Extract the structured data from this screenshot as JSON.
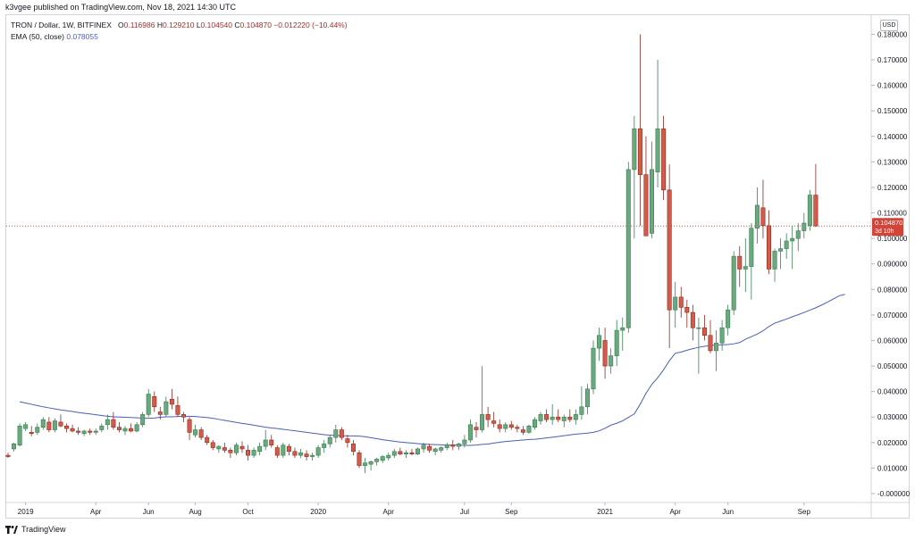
{
  "header": {
    "published": "k3vgee published on TradingView.com, Nov 18, 2021 14:30 UTC"
  },
  "legend": {
    "symbol": "TRON / Dollar, 1W, BITFINEX",
    "open_label": "O",
    "open": "0.116986",
    "high_label": "H",
    "high": "0.129210",
    "low_label": "L",
    "low": "0.104540",
    "close_label": "C",
    "close": "0.104870",
    "change": "−0.012220 (−10.44%)",
    "ema_label": "EMA (50, close)",
    "ema_value": "0.078055"
  },
  "currency_badge": "USD",
  "price_label": {
    "value": "0.104870",
    "countdown": "3d 10h"
  },
  "footer": {
    "brand": "TradingView"
  },
  "colors": {
    "up": "#26a269",
    "up_fill": "#6aa87e",
    "down": "#c0392b",
    "down_fill": "#d35b4a",
    "ema": "#4a5fb3",
    "price_line": "#c0392b"
  },
  "chart_data": {
    "type": "candlestick",
    "y_ticks": [
      "0.180000",
      "0.170000",
      "0.160000",
      "0.150000",
      "0.140000",
      "0.130000",
      "0.120000",
      "0.110000",
      "0.100000",
      "0.090000",
      "0.080000",
      "0.070000",
      "0.060000",
      "0.050000",
      "0.040000",
      "0.030000",
      "0.020000",
      "0.010000",
      "-0.000000"
    ],
    "x_ticks": [
      "2019",
      "Apr",
      "Jun",
      "Aug",
      "Oct",
      "2020",
      "Apr",
      "Jul",
      "Sep",
      "2021",
      "Apr",
      "Jun",
      "Sep"
    ],
    "ylim": [
      -0.0035,
      0.1875
    ],
    "ohlc": [
      [
        0.015,
        0.016,
        0.014,
        0.0145
      ],
      [
        0.0175,
        0.02,
        0.0165,
        0.0195
      ],
      [
        0.019,
        0.0275,
        0.0185,
        0.0265
      ],
      [
        0.0255,
        0.028,
        0.0245,
        0.027
      ],
      [
        0.024,
        0.0265,
        0.0225,
        0.0235
      ],
      [
        0.024,
        0.0275,
        0.023,
        0.026
      ],
      [
        0.026,
        0.03,
        0.025,
        0.029
      ],
      [
        0.028,
        0.03,
        0.024,
        0.025
      ],
      [
        0.025,
        0.0295,
        0.024,
        0.0285
      ],
      [
        0.028,
        0.031,
        0.026,
        0.0265
      ],
      [
        0.0265,
        0.0275,
        0.024,
        0.0255
      ],
      [
        0.0255,
        0.027,
        0.024,
        0.0245
      ],
      [
        0.0245,
        0.026,
        0.023,
        0.024
      ],
      [
        0.0235,
        0.025,
        0.0225,
        0.0245
      ],
      [
        0.0245,
        0.0255,
        0.023,
        0.024
      ],
      [
        0.024,
        0.0255,
        0.023,
        0.0245
      ],
      [
        0.025,
        0.0275,
        0.024,
        0.0265
      ],
      [
        0.027,
        0.031,
        0.025,
        0.029
      ],
      [
        0.029,
        0.032,
        0.025,
        0.026
      ],
      [
        0.026,
        0.028,
        0.024,
        0.025
      ],
      [
        0.0245,
        0.0265,
        0.023,
        0.0255
      ],
      [
        0.0255,
        0.0275,
        0.024,
        0.0245
      ],
      [
        0.0245,
        0.028,
        0.024,
        0.027
      ],
      [
        0.027,
        0.032,
        0.026,
        0.031
      ],
      [
        0.031,
        0.041,
        0.03,
        0.039
      ],
      [
        0.038,
        0.04,
        0.032,
        0.034
      ],
      [
        0.032,
        0.034,
        0.029,
        0.031
      ],
      [
        0.031,
        0.038,
        0.03,
        0.036
      ],
      [
        0.037,
        0.041,
        0.033,
        0.035
      ],
      [
        0.0345,
        0.038,
        0.03,
        0.031
      ],
      [
        0.031,
        0.032,
        0.028,
        0.03
      ],
      [
        0.029,
        0.03,
        0.021,
        0.024
      ],
      [
        0.023,
        0.027,
        0.022,
        0.025
      ],
      [
        0.025,
        0.026,
        0.021,
        0.022
      ],
      [
        0.022,
        0.023,
        0.019,
        0.02
      ],
      [
        0.02,
        0.021,
        0.017,
        0.018
      ],
      [
        0.0175,
        0.019,
        0.016,
        0.0185
      ],
      [
        0.018,
        0.02,
        0.016,
        0.017
      ],
      [
        0.017,
        0.018,
        0.014,
        0.016
      ],
      [
        0.016,
        0.02,
        0.015,
        0.019
      ],
      [
        0.0185,
        0.0205,
        0.016,
        0.0175
      ],
      [
        0.017,
        0.019,
        0.013,
        0.015
      ],
      [
        0.015,
        0.018,
        0.014,
        0.017
      ],
      [
        0.0165,
        0.02,
        0.015,
        0.0185
      ],
      [
        0.0185,
        0.025,
        0.017,
        0.021
      ],
      [
        0.021,
        0.023,
        0.018,
        0.019
      ],
      [
        0.018,
        0.019,
        0.014,
        0.015
      ],
      [
        0.015,
        0.02,
        0.014,
        0.019
      ],
      [
        0.0185,
        0.0195,
        0.015,
        0.0165
      ],
      [
        0.0165,
        0.018,
        0.014,
        0.015
      ],
      [
        0.015,
        0.0175,
        0.014,
        0.016
      ],
      [
        0.0155,
        0.017,
        0.013,
        0.0145
      ],
      [
        0.0145,
        0.016,
        0.013,
        0.015
      ],
      [
        0.015,
        0.019,
        0.014,
        0.018
      ],
      [
        0.018,
        0.021,
        0.016,
        0.0195
      ],
      [
        0.0195,
        0.023,
        0.018,
        0.022
      ],
      [
        0.022,
        0.027,
        0.02,
        0.025
      ],
      [
        0.025,
        0.026,
        0.021,
        0.022
      ],
      [
        0.0215,
        0.023,
        0.018,
        0.02
      ],
      [
        0.0195,
        0.021,
        0.015,
        0.0165
      ],
      [
        0.016,
        0.017,
        0.01,
        0.011
      ],
      [
        0.011,
        0.014,
        0.008,
        0.012
      ],
      [
        0.0115,
        0.013,
        0.009,
        0.0125
      ],
      [
        0.0125,
        0.014,
        0.011,
        0.0135
      ],
      [
        0.013,
        0.015,
        0.012,
        0.0145
      ],
      [
        0.014,
        0.016,
        0.013,
        0.015
      ],
      [
        0.015,
        0.0175,
        0.014,
        0.0165
      ],
      [
        0.0165,
        0.018,
        0.015,
        0.0155
      ],
      [
        0.0155,
        0.017,
        0.014,
        0.016
      ],
      [
        0.016,
        0.0175,
        0.015,
        0.0155
      ],
      [
        0.0155,
        0.018,
        0.015,
        0.0175
      ],
      [
        0.0175,
        0.02,
        0.016,
        0.019
      ],
      [
        0.0185,
        0.0195,
        0.016,
        0.017
      ],
      [
        0.0165,
        0.018,
        0.015,
        0.0175
      ],
      [
        0.017,
        0.0185,
        0.016,
        0.018
      ],
      [
        0.018,
        0.02,
        0.017,
        0.019
      ],
      [
        0.019,
        0.021,
        0.017,
        0.0185
      ],
      [
        0.0185,
        0.02,
        0.017,
        0.0195
      ],
      [
        0.0195,
        0.023,
        0.018,
        0.021
      ],
      [
        0.021,
        0.029,
        0.02,
        0.027
      ],
      [
        0.026,
        0.028,
        0.022,
        0.025
      ],
      [
        0.025,
        0.05,
        0.024,
        0.031
      ],
      [
        0.031,
        0.034,
        0.026,
        0.029
      ],
      [
        0.0285,
        0.032,
        0.026,
        0.0275
      ],
      [
        0.027,
        0.029,
        0.024,
        0.0255
      ],
      [
        0.0255,
        0.028,
        0.024,
        0.027
      ],
      [
        0.027,
        0.0285,
        0.025,
        0.026
      ],
      [
        0.026,
        0.027,
        0.024,
        0.0255
      ],
      [
        0.025,
        0.0265,
        0.023,
        0.024
      ],
      [
        0.024,
        0.027,
        0.0235,
        0.0265
      ],
      [
        0.026,
        0.03,
        0.025,
        0.029
      ],
      [
        0.0285,
        0.032,
        0.027,
        0.031
      ],
      [
        0.031,
        0.033,
        0.028,
        0.029
      ],
      [
        0.029,
        0.035,
        0.027,
        0.03
      ],
      [
        0.03,
        0.033,
        0.028,
        0.029
      ],
      [
        0.0285,
        0.031,
        0.026,
        0.03
      ],
      [
        0.03,
        0.033,
        0.028,
        0.029
      ],
      [
        0.029,
        0.033,
        0.027,
        0.031
      ],
      [
        0.031,
        0.042,
        0.029,
        0.034
      ],
      [
        0.034,
        0.043,
        0.031,
        0.041
      ],
      [
        0.041,
        0.06,
        0.039,
        0.057
      ],
      [
        0.057,
        0.065,
        0.052,
        0.062
      ],
      [
        0.06,
        0.065,
        0.045,
        0.05
      ],
      [
        0.05,
        0.057,
        0.047,
        0.054
      ],
      [
        0.054,
        0.068,
        0.05,
        0.064
      ],
      [
        0.064,
        0.069,
        0.056,
        0.065
      ],
      [
        0.065,
        0.13,
        0.063,
        0.127
      ],
      [
        0.127,
        0.148,
        0.1,
        0.143
      ],
      [
        0.143,
        0.18,
        0.105,
        0.125
      ],
      [
        0.125,
        0.14,
        0.102,
        0.101
      ],
      [
        0.102,
        0.138,
        0.1,
        0.127
      ],
      [
        0.126,
        0.17,
        0.12,
        0.143
      ],
      [
        0.143,
        0.148,
        0.115,
        0.119
      ],
      [
        0.119,
        0.129,
        0.057,
        0.072
      ],
      [
        0.072,
        0.083,
        0.065,
        0.077
      ],
      [
        0.077,
        0.081,
        0.069,
        0.073
      ],
      [
        0.073,
        0.076,
        0.065,
        0.071
      ],
      [
        0.071,
        0.074,
        0.06,
        0.065
      ],
      [
        0.065,
        0.069,
        0.047,
        0.065
      ],
      [
        0.065,
        0.07,
        0.06,
        0.062
      ],
      [
        0.062,
        0.068,
        0.055,
        0.056
      ],
      [
        0.056,
        0.064,
        0.048,
        0.059
      ],
      [
        0.059,
        0.068,
        0.056,
        0.065
      ],
      [
        0.065,
        0.074,
        0.062,
        0.072
      ],
      [
        0.072,
        0.095,
        0.07,
        0.093
      ],
      [
        0.093,
        0.097,
        0.081,
        0.088
      ],
      [
        0.088,
        0.1,
        0.079,
        0.089
      ],
      [
        0.089,
        0.106,
        0.076,
        0.104
      ],
      [
        0.104,
        0.12,
        0.098,
        0.113
      ],
      [
        0.112,
        0.123,
        0.1,
        0.105
      ],
      [
        0.105,
        0.111,
        0.086,
        0.088
      ],
      [
        0.088,
        0.096,
        0.083,
        0.095
      ],
      [
        0.095,
        0.1,
        0.088,
        0.096
      ],
      [
        0.096,
        0.102,
        0.092,
        0.099
      ],
      [
        0.099,
        0.105,
        0.088,
        0.1
      ],
      [
        0.1,
        0.106,
        0.095,
        0.103
      ],
      [
        0.103,
        0.11,
        0.1,
        0.106
      ],
      [
        0.105,
        0.119,
        0.103,
        0.117
      ],
      [
        0.116986,
        0.12921,
        0.10454,
        0.10487
      ]
    ],
    "ema": [
      0.036,
      0.0355,
      0.035,
      0.0345,
      0.034,
      0.0336,
      0.0332,
      0.0328,
      0.0325,
      0.0322,
      0.0318,
      0.0315,
      0.0312,
      0.0309,
      0.0306,
      0.0303,
      0.0301,
      0.03,
      0.0299,
      0.0298,
      0.0297,
      0.0296,
      0.0295,
      0.0296,
      0.0299,
      0.0301,
      0.0301,
      0.0302,
      0.0303,
      0.0303,
      0.0302,
      0.03,
      0.0298,
      0.0295,
      0.0291,
      0.0287,
      0.0283,
      0.0279,
      0.0275,
      0.0272,
      0.0268,
      0.0264,
      0.026,
      0.0257,
      0.0255,
      0.0252,
      0.0249,
      0.0246,
      0.0243,
      0.024,
      0.0237,
      0.0234,
      0.0231,
      0.0229,
      0.0228,
      0.0227,
      0.0226,
      0.0226,
      0.0225,
      0.0223,
      0.0219,
      0.0215,
      0.0211,
      0.0208,
      0.0205,
      0.0202,
      0.02,
      0.0198,
      0.0196,
      0.0194,
      0.0193,
      0.0192,
      0.0191,
      0.019,
      0.019,
      0.019,
      0.0189,
      0.0189,
      0.019,
      0.0193,
      0.0194,
      0.0198,
      0.0201,
      0.0204,
      0.0206,
      0.0208,
      0.021,
      0.0212,
      0.0213,
      0.0215,
      0.0218,
      0.0221,
      0.0224,
      0.0227,
      0.023,
      0.0233,
      0.0235,
      0.0237,
      0.024,
      0.0246,
      0.0256,
      0.0268,
      0.0276,
      0.0285,
      0.0299,
      0.0312,
      0.035,
      0.0393,
      0.0428,
      0.0454,
      0.0485,
      0.0521,
      0.055,
      0.0555,
      0.0562,
      0.0568,
      0.0573,
      0.0577,
      0.058,
      0.0583,
      0.0583,
      0.0584,
      0.0587,
      0.0592,
      0.0605,
      0.0615,
      0.0625,
      0.0638,
      0.0655,
      0.0668,
      0.0676,
      0.0684,
      0.0693,
      0.0701,
      0.071,
      0.0719,
      0.0728,
      0.0739,
      0.075,
      0.0763,
      0.0775,
      0.0781
    ]
  }
}
